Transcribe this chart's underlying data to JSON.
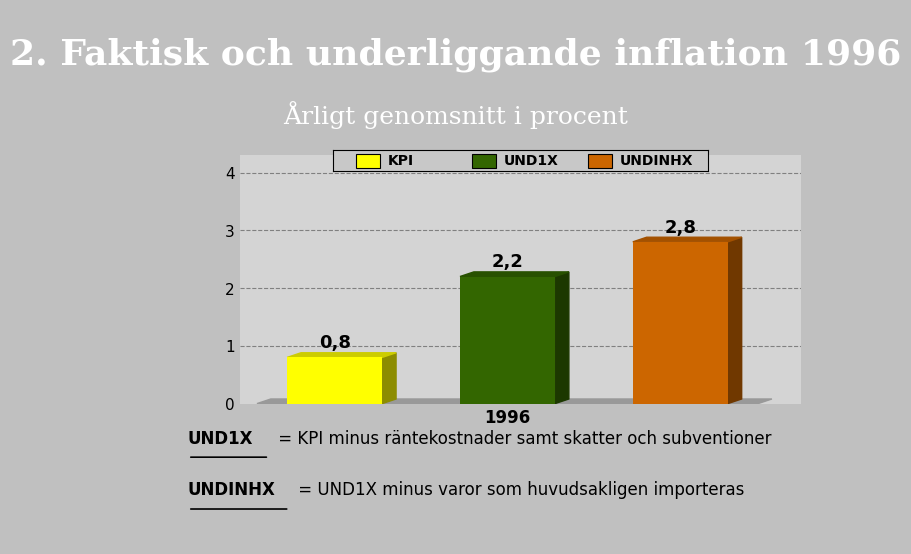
{
  "title": "2. Faktisk och underliggande inflation 1996",
  "subtitle": "Årligt genomsnitt i procent",
  "background_color": "#c0c0c0",
  "header_bg_color": "#000000",
  "chart_area_color": "#d4d4d4",
  "bars": [
    {
      "label": "KPI",
      "value": 0.8,
      "color": "#ffff00"
    },
    {
      "label": "UND1X",
      "value": 2.2,
      "color": "#336600"
    },
    {
      "label": "UNDINHX",
      "value": 2.8,
      "color": "#cc6600"
    }
  ],
  "bar_labels": [
    "0,8",
    "2,2",
    "2,8"
  ],
  "x_tick_label": "1996",
  "y_ticks": [
    0,
    1,
    2,
    3,
    4
  ],
  "ylim": [
    0,
    4.3
  ],
  "title_color": "#ffffff",
  "title_fontsize": 26,
  "subtitle_fontsize": 18,
  "footnote1_bold": "UND1X",
  "footnote1_rest": " = KPI minus räntekostnader samt skatter och subventioner",
  "footnote2_bold": "UNDINHX",
  "footnote2_rest": " = UND1X minus varor som huvudsakligen importeras",
  "legend_labels": [
    "KPI",
    "UND1X",
    "UNDINHX"
  ],
  "legend_colors": [
    "#ffff00",
    "#336600",
    "#cc6600"
  ]
}
